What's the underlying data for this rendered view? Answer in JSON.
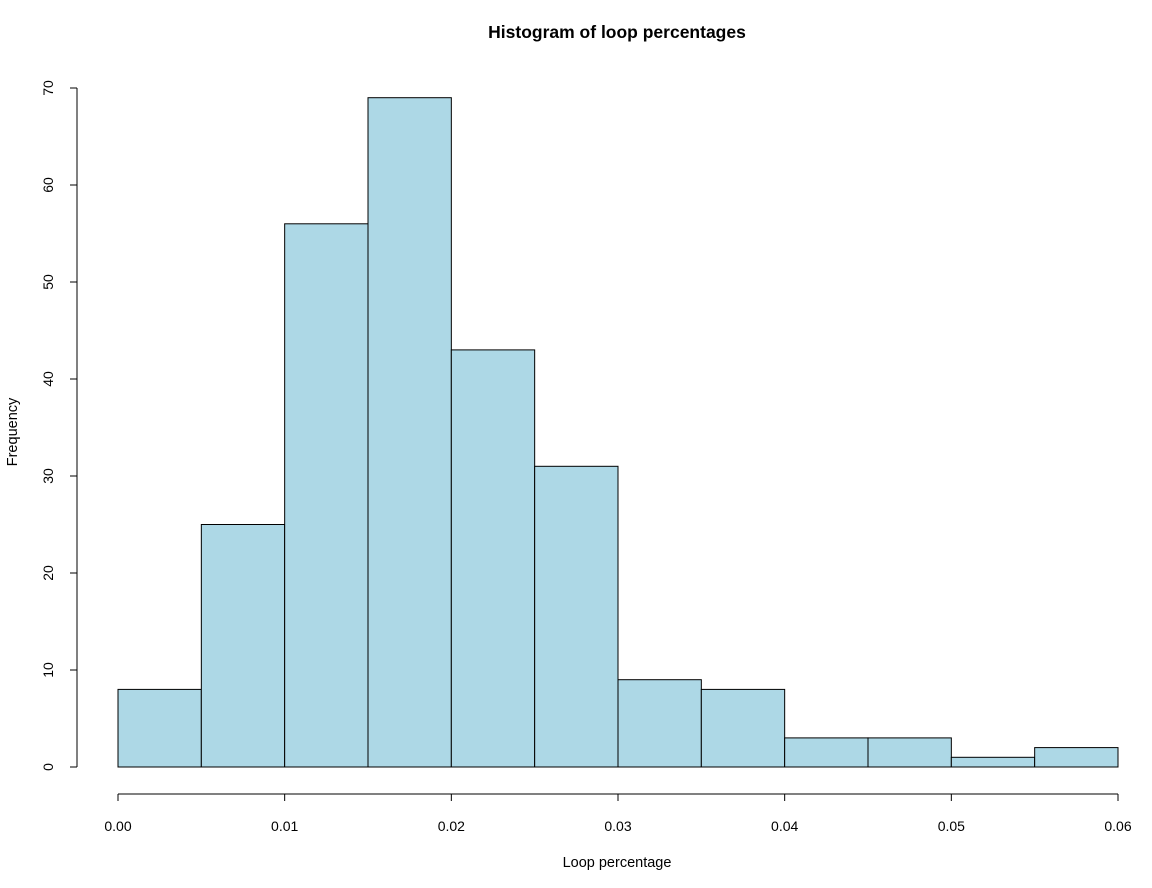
{
  "chart_data": {
    "type": "bar",
    "subtype": "histogram",
    "title": "Histogram of loop percentages",
    "xlabel": "Loop percentage",
    "ylabel": "Frequency",
    "bins": [
      {
        "start": 0.0,
        "end": 0.005,
        "count": 8
      },
      {
        "start": 0.005,
        "end": 0.01,
        "count": 25
      },
      {
        "start": 0.01,
        "end": 0.015,
        "count": 56
      },
      {
        "start": 0.015,
        "end": 0.02,
        "count": 69
      },
      {
        "start": 0.02,
        "end": 0.025,
        "count": 43
      },
      {
        "start": 0.025,
        "end": 0.03,
        "count": 31
      },
      {
        "start": 0.03,
        "end": 0.035,
        "count": 9
      },
      {
        "start": 0.035,
        "end": 0.04,
        "count": 8
      },
      {
        "start": 0.04,
        "end": 0.045,
        "count": 3
      },
      {
        "start": 0.045,
        "end": 0.05,
        "count": 3
      },
      {
        "start": 0.05,
        "end": 0.055,
        "count": 1
      },
      {
        "start": 0.055,
        "end": 0.06,
        "count": 2
      }
    ],
    "xlim": [
      0.0,
      0.06
    ],
    "ylim": [
      0,
      70
    ],
    "x_ticks": [
      0.0,
      0.01,
      0.02,
      0.03,
      0.04,
      0.05,
      0.06
    ],
    "x_tick_labels": [
      "0.00",
      "0.01",
      "0.02",
      "0.03",
      "0.04",
      "0.05",
      "0.06"
    ],
    "y_ticks": [
      0,
      10,
      20,
      30,
      40,
      50,
      60,
      70
    ],
    "y_tick_labels": [
      "0",
      "10",
      "20",
      "30",
      "40",
      "50",
      "60",
      "70"
    ],
    "grid": false,
    "legend": "none",
    "bar_color": "#add8e6",
    "bar_border_color": "#000000"
  }
}
